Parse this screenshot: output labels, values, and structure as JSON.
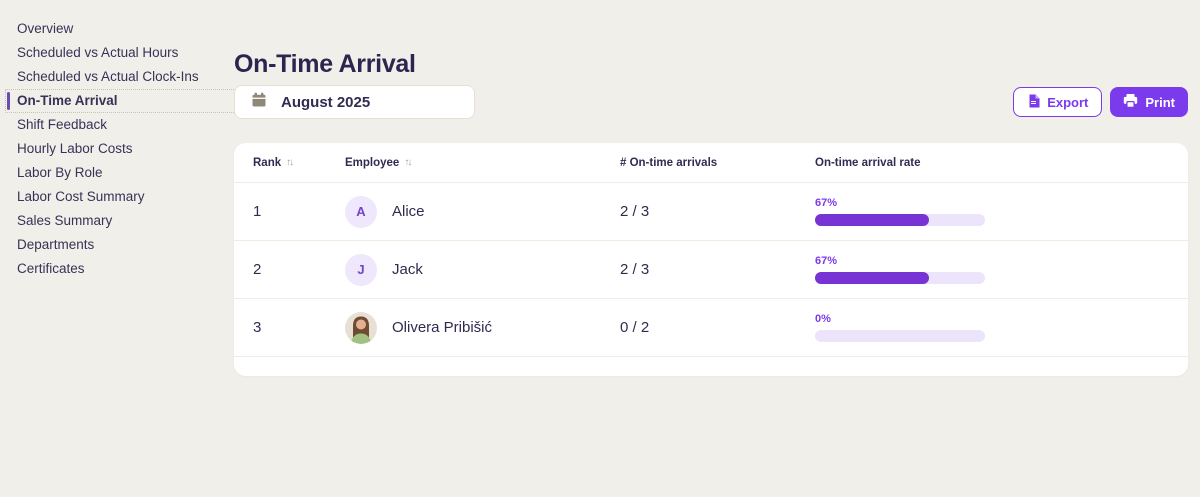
{
  "colors": {
    "background": "#f0efe9",
    "accent_purple": "#7c3aed",
    "progress_fill": "#7833d4",
    "progress_track": "#ece4fa",
    "text_dark": "#33294e"
  },
  "sidebar": {
    "items": [
      {
        "label": "Overview",
        "active": false
      },
      {
        "label": "Scheduled vs Actual Hours",
        "active": false
      },
      {
        "label": "Scheduled vs Actual Clock-Ins",
        "active": false
      },
      {
        "label": "On-Time Arrival",
        "active": true
      },
      {
        "label": "Shift Feedback",
        "active": false
      },
      {
        "label": "Hourly Labor Costs",
        "active": false
      },
      {
        "label": "Labor By Role",
        "active": false
      },
      {
        "label": "Labor Cost Summary",
        "active": false
      },
      {
        "label": "Sales Summary",
        "active": false
      },
      {
        "label": "Departments",
        "active": false
      },
      {
        "label": "Certificates",
        "active": false
      }
    ]
  },
  "header": {
    "title": "On-Time Arrival"
  },
  "controls": {
    "date_picker": {
      "value": "August 2025",
      "icon": "calendar-icon"
    },
    "export_button": {
      "label": "Export",
      "icon": "csv-file-icon"
    },
    "print_button": {
      "label": "Print",
      "icon": "printer-icon"
    }
  },
  "table": {
    "columns": [
      {
        "label": "Rank",
        "sortable": true
      },
      {
        "label": "Employee",
        "sortable": true
      },
      {
        "label": "# On-time arrivals",
        "sortable": false
      },
      {
        "label": "On-time arrival rate",
        "sortable": false
      }
    ],
    "sort_glyph": "↑↓",
    "rows": [
      {
        "rank": "1",
        "name": "Alice",
        "avatar": "initial",
        "initial": "A",
        "arrivals": "2 / 3",
        "rate_label": "67%",
        "rate_percent": 67
      },
      {
        "rank": "2",
        "name": "Jack",
        "avatar": "initial",
        "initial": "J",
        "arrivals": "2 / 3",
        "rate_label": "67%",
        "rate_percent": 67
      },
      {
        "rank": "3",
        "name": "Olivera Pribišić",
        "avatar": "photo",
        "initial": "",
        "arrivals": "0 / 2",
        "rate_label": "0%",
        "rate_percent": 0
      }
    ]
  }
}
